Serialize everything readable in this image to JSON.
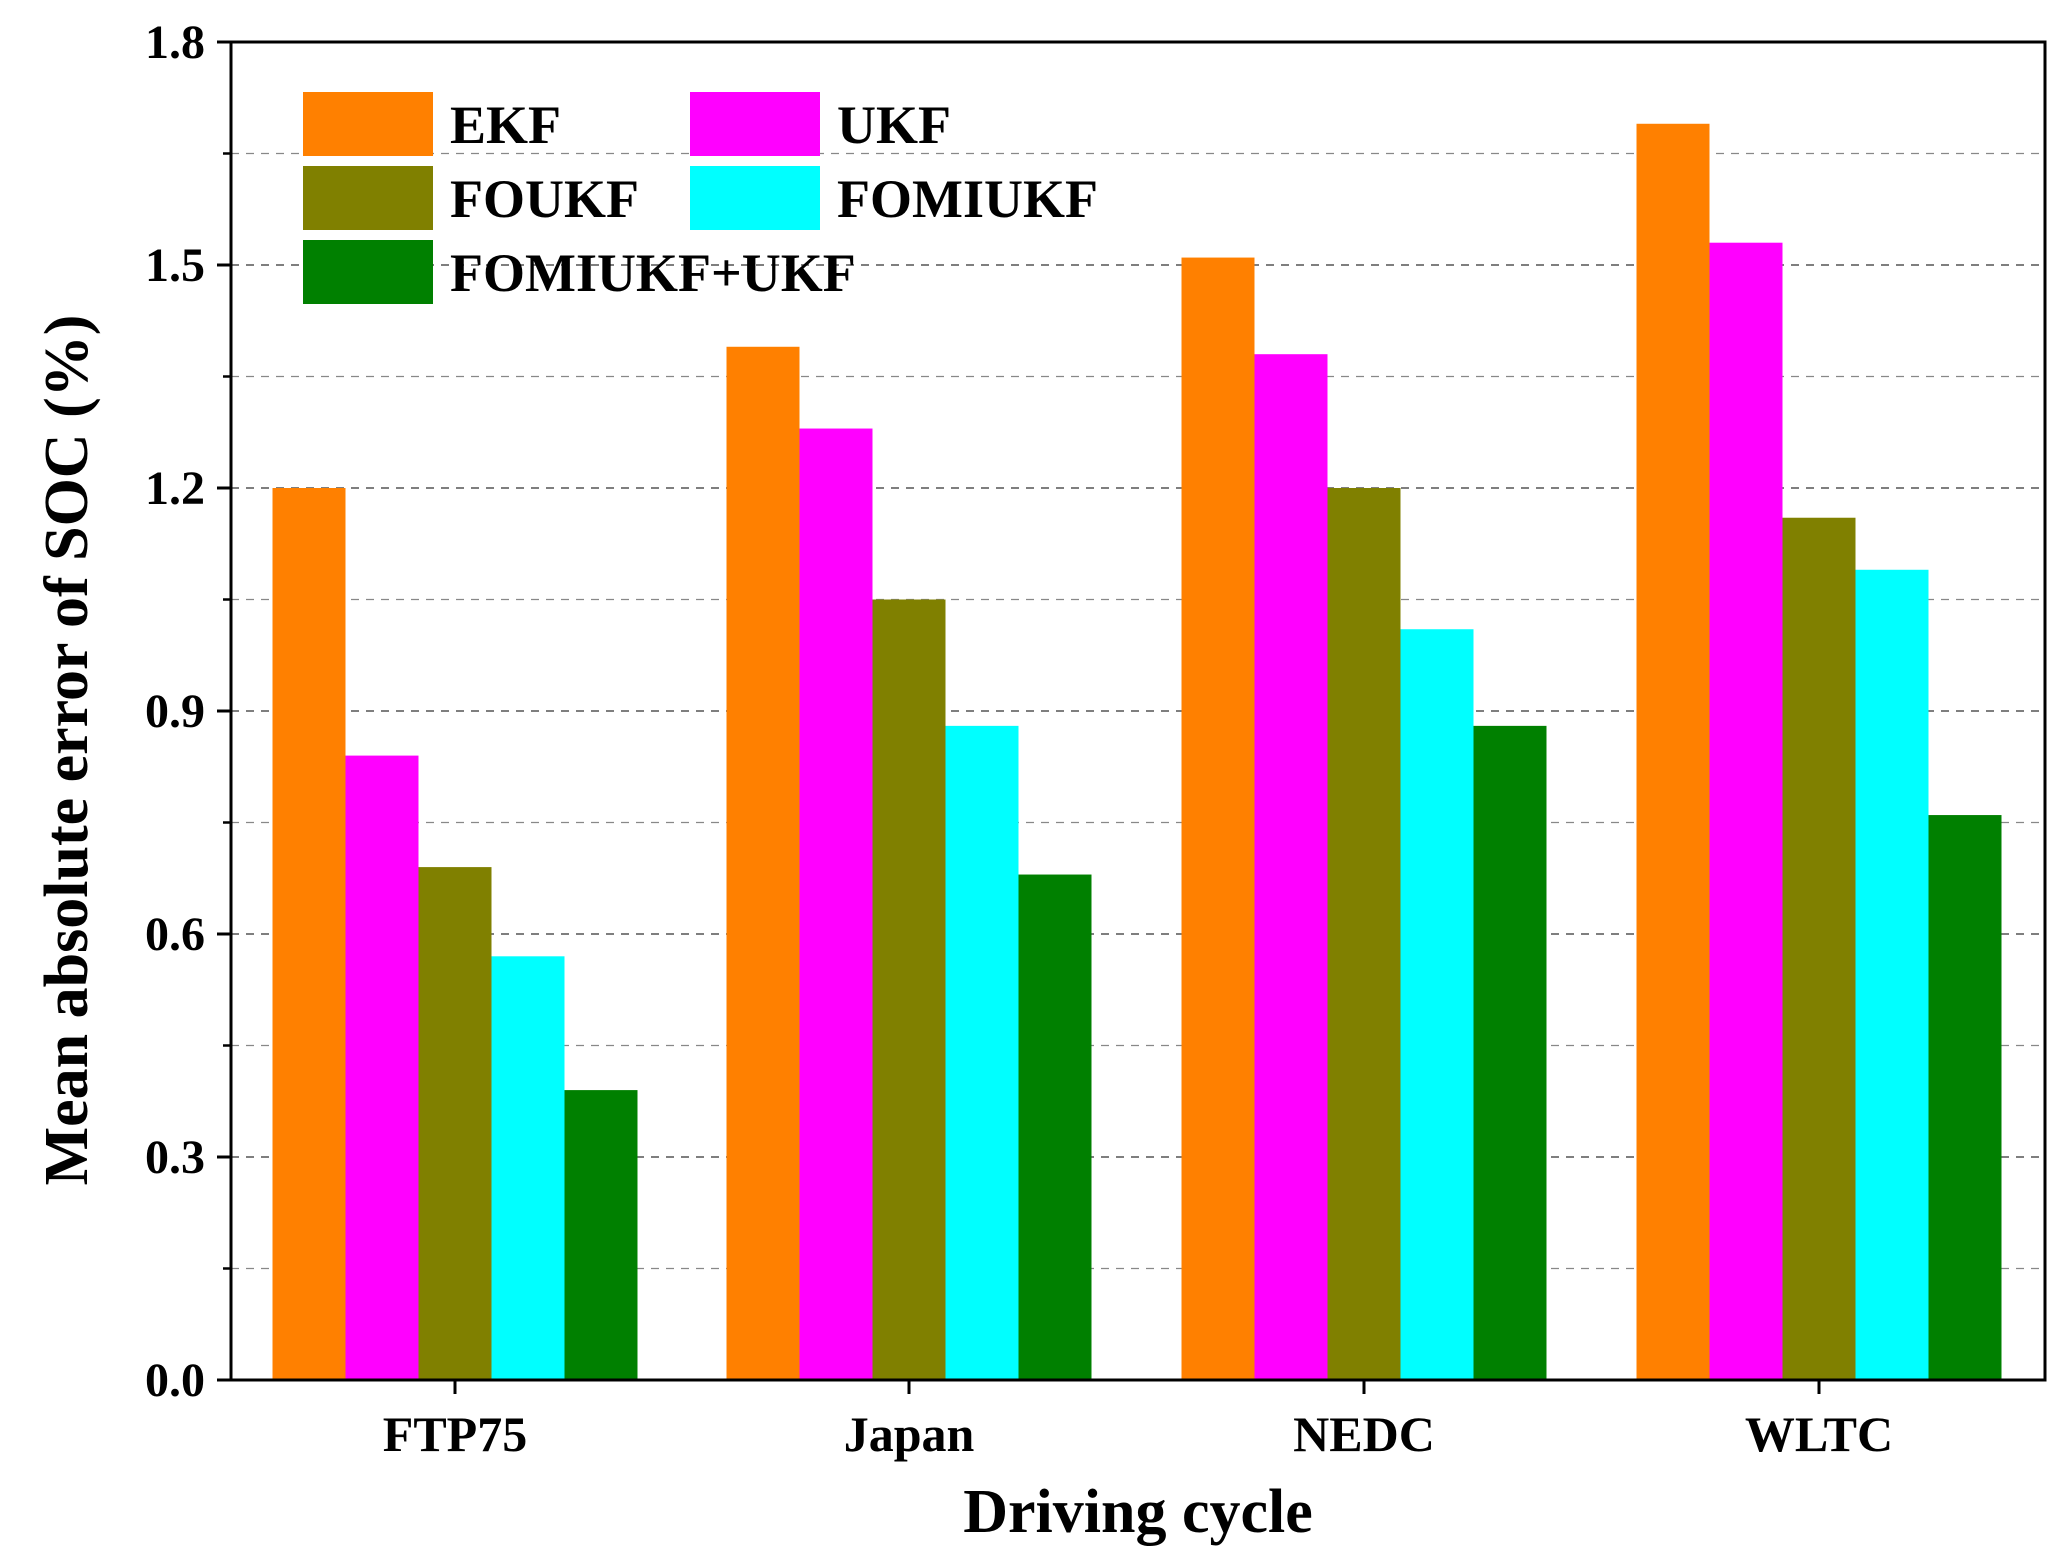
{
  "chart_data": {
    "type": "bar",
    "title": "",
    "xlabel": "Driving cycle",
    "ylabel": "Mean absolute error of SOC (%)",
    "ylim": [
      0,
      1.8
    ],
    "yticks": [
      "0.0",
      "0.3",
      "0.6",
      "0.9",
      "1.2",
      "1.5",
      "1.8"
    ],
    "ytick_values": [
      0,
      0.3,
      0.6,
      0.9,
      1.2,
      1.5,
      1.8
    ],
    "minor_grid_values": [
      0.15,
      0.45,
      0.75,
      1.05,
      1.35,
      1.65
    ],
    "grid": "dashed horizontal",
    "legend_position": "top-left",
    "categories": [
      "FTP75",
      "Japan",
      "NEDC",
      "WLTC"
    ],
    "series": [
      {
        "name": "EKF",
        "color": "#ff8000",
        "values": [
          1.2,
          1.39,
          1.51,
          1.69
        ]
      },
      {
        "name": "UKF",
        "color": "#ff00ff",
        "values": [
          0.84,
          1.28,
          1.38,
          1.53
        ]
      },
      {
        "name": "FOUKF",
        "color": "#808000",
        "values": [
          0.69,
          1.05,
          1.2,
          1.16
        ]
      },
      {
        "name": "FOMIUKF",
        "color": "#00ffff",
        "values": [
          0.57,
          0.88,
          1.01,
          1.09
        ]
      },
      {
        "name": "FOMIUKF+UKF",
        "color": "#008000",
        "values": [
          0.39,
          0.68,
          0.88,
          0.76
        ]
      }
    ]
  }
}
